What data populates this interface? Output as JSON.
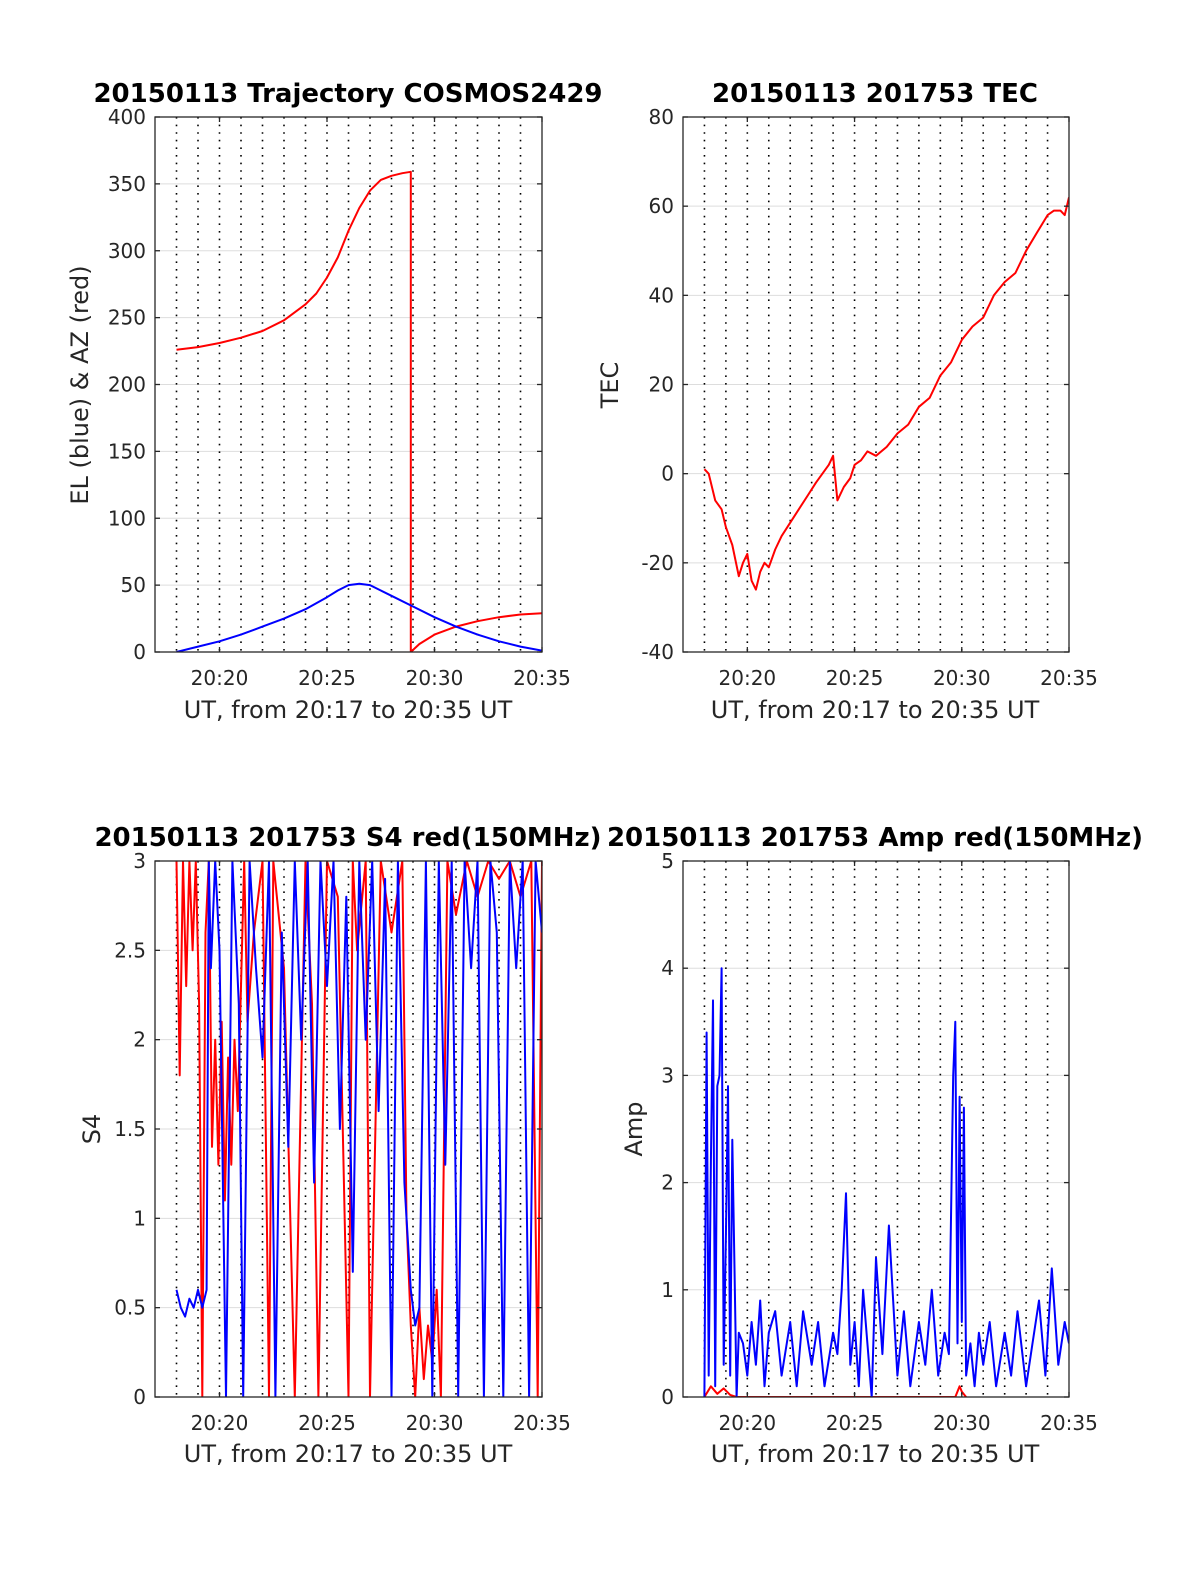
{
  "chart_data": [
    {
      "id": "trajectory",
      "type": "line",
      "title": "20150113 Trajectory COSMOS2429",
      "xlabel": "UT, from 20:17 to 20:35 UT",
      "ylabel": "EL (blue) & AZ (red)",
      "xlim": [
        17,
        35
      ],
      "ylim": [
        0,
        400
      ],
      "xticks": [
        20,
        25,
        30,
        35
      ],
      "xtick_labels": [
        "20:20",
        "20:25",
        "20:30",
        "20:35"
      ],
      "yticks": [
        0,
        50,
        100,
        150,
        200,
        250,
        300,
        350,
        400
      ],
      "ytick_labels": [
        "0",
        "50",
        "100",
        "150",
        "200",
        "250",
        "300",
        "350",
        "400"
      ],
      "grid_minutes": [
        18,
        19,
        20,
        21,
        22,
        23,
        24,
        25,
        26,
        27,
        28,
        29,
        30,
        31,
        32,
        33,
        34
      ],
      "series": [
        {
          "color": "#ff0000",
          "x": [
            18.0,
            19.0,
            20.0,
            21.0,
            22.0,
            23.0,
            24.0,
            24.5,
            25.0,
            25.5,
            26.0,
            26.5,
            27.0,
            27.5,
            28.0,
            28.5,
            28.9,
            28.9,
            29.3,
            30.0,
            31.0,
            32.0,
            33.0,
            34.0,
            35.0
          ],
          "y": [
            226,
            228,
            231,
            235,
            240,
            248,
            260,
            268,
            280,
            295,
            315,
            332,
            345,
            353,
            356,
            358,
            359,
            0,
            6,
            13,
            19,
            23,
            26,
            28,
            29
          ]
        },
        {
          "color": "#0000ff",
          "x": [
            18.0,
            19.0,
            20.0,
            21.0,
            22.0,
            23.0,
            24.0,
            25.0,
            25.5,
            26.0,
            26.5,
            27.0,
            27.5,
            28.0,
            29.0,
            30.0,
            31.0,
            32.0,
            33.0,
            34.0,
            35.0
          ],
          "y": [
            0,
            4,
            8,
            13,
            19,
            25,
            32,
            41,
            46,
            50,
            51,
            50,
            46,
            42,
            34,
            26,
            19,
            13,
            8,
            4,
            1
          ]
        }
      ]
    },
    {
      "id": "tec",
      "type": "line",
      "title": "20150113 201753 TEC",
      "xlabel": "UT, from 20:17 to 20:35 UT",
      "ylabel": "TEC",
      "xlim": [
        17,
        35
      ],
      "ylim": [
        -40,
        80
      ],
      "xticks": [
        20,
        25,
        30,
        35
      ],
      "xtick_labels": [
        "20:20",
        "20:25",
        "20:30",
        "20:35"
      ],
      "yticks": [
        -40,
        -20,
        0,
        20,
        40,
        60,
        80
      ],
      "ytick_labels": [
        "-40",
        "-20",
        "0",
        "20",
        "40",
        "60",
        "80"
      ],
      "grid_minutes": [
        18,
        19,
        20,
        21,
        22,
        23,
        24,
        25,
        26,
        27,
        28,
        29,
        30,
        31,
        32,
        33,
        34
      ],
      "series": [
        {
          "color": "#ff0000",
          "x": [
            18.0,
            18.2,
            18.5,
            18.8,
            19.0,
            19.3,
            19.6,
            19.8,
            20.0,
            20.2,
            20.4,
            20.6,
            20.8,
            21.0,
            21.3,
            21.6,
            22.0,
            22.4,
            22.8,
            23.2,
            23.5,
            23.8,
            24.0,
            24.2,
            24.5,
            24.8,
            25.0,
            25.3,
            25.6,
            26.0,
            26.5,
            27.0,
            27.5,
            28.0,
            28.5,
            29.0,
            29.5,
            30.0,
            30.5,
            31.0,
            31.5,
            32.0,
            32.5,
            33.0,
            33.5,
            34.0,
            34.3,
            34.6,
            34.8,
            35.0
          ],
          "y": [
            1,
            0,
            -6,
            -8,
            -12,
            -16,
            -23,
            -20,
            -18,
            -24,
            -26,
            -22,
            -20,
            -21,
            -17,
            -14,
            -11,
            -8,
            -5,
            -2,
            0,
            2,
            4,
            -6,
            -3,
            -1,
            2,
            3,
            5,
            4,
            6,
            9,
            11,
            15,
            17,
            22,
            25,
            30,
            33,
            35,
            40,
            43,
            45,
            50,
            54,
            58,
            59,
            59,
            58,
            62
          ]
        }
      ]
    },
    {
      "id": "s4",
      "type": "line",
      "title": "20150113 201753 S4 red(150MHz)",
      "xlabel": "UT, from 20:17 to 20:35 UT",
      "ylabel": "S4",
      "xlim": [
        17,
        35
      ],
      "ylim": [
        0,
        3
      ],
      "xticks": [
        20,
        25,
        30,
        35
      ],
      "xtick_labels": [
        "20:20",
        "20:25",
        "20:30",
        "20:35"
      ],
      "yticks": [
        0,
        0.5,
        1,
        1.5,
        2,
        2.5,
        3
      ],
      "ytick_labels": [
        "0",
        "0.5",
        "1",
        "1.5",
        "2",
        "2.5",
        "3"
      ],
      "grid_minutes": [
        18,
        19,
        20,
        21,
        22,
        23,
        24,
        25,
        26,
        27,
        28,
        29,
        30,
        31,
        32,
        33,
        34
      ],
      "series": [
        {
          "color": "#ff0000",
          "x": [
            18.0,
            18.15,
            18.3,
            18.45,
            18.6,
            18.75,
            18.9,
            19.05,
            19.2,
            19.35,
            19.5,
            19.65,
            19.8,
            19.95,
            20.1,
            20.25,
            20.4,
            20.55,
            20.7,
            20.85,
            21.0,
            21.15,
            21.3,
            21.6,
            22.0,
            22.3,
            22.5,
            23.0,
            23.5,
            24.0,
            24.3,
            24.6,
            25.0,
            25.5,
            26.0,
            26.2,
            26.4,
            26.8,
            27.0,
            27.5,
            28.0,
            28.5,
            28.7,
            28.9,
            29.1,
            29.3,
            29.5,
            29.7,
            29.9,
            30.1,
            30.3,
            30.6,
            31.0,
            31.5,
            32.0,
            32.5,
            33.0,
            33.5,
            34.0,
            34.5,
            34.8,
            35.0
          ],
          "y": [
            3.0,
            1.8,
            3.0,
            2.3,
            3.0,
            2.5,
            3.0,
            2.2,
            0.0,
            2.6,
            3.0,
            1.4,
            2.0,
            1.3,
            2.1,
            1.1,
            1.9,
            1.3,
            2.0,
            1.6,
            2.3,
            3.0,
            2.1,
            2.6,
            3.0,
            0.0,
            3.0,
            2.4,
            0.0,
            3.0,
            2.2,
            0.0,
            3.0,
            2.8,
            0.0,
            3.0,
            2.5,
            3.0,
            0.0,
            3.0,
            2.6,
            3.0,
            1.0,
            0.4,
            0.0,
            0.5,
            0.1,
            0.4,
            0.2,
            0.6,
            0.0,
            3.0,
            2.7,
            3.0,
            2.8,
            3.0,
            2.9,
            3.0,
            2.8,
            3.0,
            0.0,
            3.0
          ]
        },
        {
          "color": "#0000ff",
          "x": [
            18.0,
            18.2,
            18.4,
            18.6,
            18.8,
            19.0,
            19.2,
            19.4,
            19.5,
            19.6,
            19.8,
            20.0,
            20.3,
            20.6,
            20.9,
            21.1,
            21.4,
            21.7,
            22.0,
            22.3,
            22.6,
            22.9,
            23.2,
            23.5,
            23.8,
            24.1,
            24.4,
            24.7,
            25.0,
            25.3,
            25.6,
            25.9,
            26.2,
            26.5,
            26.8,
            27.1,
            27.4,
            27.7,
            28.0,
            28.3,
            28.6,
            28.9,
            29.1,
            29.3,
            29.6,
            29.9,
            30.2,
            30.5,
            30.8,
            31.1,
            31.4,
            31.7,
            32.0,
            32.3,
            32.6,
            32.9,
            33.2,
            33.5,
            33.8,
            34.1,
            34.4,
            34.7,
            35.0
          ],
          "y": [
            0.6,
            0.5,
            0.45,
            0.55,
            0.5,
            0.6,
            0.5,
            0.6,
            3.0,
            2.4,
            3.0,
            2.5,
            0.0,
            3.0,
            2.2,
            0.0,
            3.0,
            2.4,
            1.9,
            3.0,
            0.0,
            2.6,
            1.4,
            3.0,
            2.0,
            3.0,
            1.2,
            3.0,
            2.3,
            3.0,
            1.5,
            2.8,
            0.7,
            3.0,
            2.0,
            3.0,
            1.6,
            2.9,
            0.0,
            3.0,
            1.2,
            0.6,
            0.4,
            0.5,
            3.0,
            0.0,
            3.0,
            1.3,
            3.0,
            0.0,
            3.0,
            2.4,
            3.0,
            0.0,
            3.0,
            2.6,
            0.0,
            3.0,
            2.4,
            3.0,
            0.0,
            3.0,
            2.6
          ]
        }
      ]
    },
    {
      "id": "amp",
      "type": "line",
      "title": "20150113 201753 Amp red(150MHz)",
      "xlabel": "UT, from 20:17 to 20:35 UT",
      "ylabel": "Amp",
      "xlim": [
        17,
        35
      ],
      "ylim": [
        0,
        5
      ],
      "xticks": [
        20,
        25,
        30,
        35
      ],
      "xtick_labels": [
        "20:20",
        "20:25",
        "20:30",
        "20:35"
      ],
      "yticks": [
        0,
        1,
        2,
        3,
        4,
        5
      ],
      "ytick_labels": [
        "0",
        "1",
        "2",
        "3",
        "4",
        "5"
      ],
      "grid_minutes": [
        18,
        19,
        20,
        21,
        22,
        23,
        24,
        25,
        26,
        27,
        28,
        29,
        30,
        31,
        32,
        33,
        34
      ],
      "series": [
        {
          "color": "#ff0000",
          "x": [
            18.0,
            18.3,
            18.6,
            18.9,
            19.2,
            19.5,
            29.7,
            29.9,
            30.0,
            30.2
          ],
          "y": [
            0.0,
            0.1,
            0.03,
            0.08,
            0.02,
            0.0,
            0.0,
            0.1,
            0.05,
            0.0
          ]
        },
        {
          "color": "#0000ff",
          "x": [
            18.0,
            18.1,
            18.2,
            18.3,
            18.4,
            18.5,
            18.6,
            18.7,
            18.8,
            18.9,
            19.0,
            19.1,
            19.2,
            19.3,
            19.4,
            19.5,
            19.6,
            19.8,
            20.0,
            20.2,
            20.4,
            20.6,
            20.8,
            21.0,
            21.3,
            21.6,
            22.0,
            22.3,
            22.6,
            23.0,
            23.3,
            23.6,
            24.0,
            24.2,
            24.4,
            24.6,
            24.8,
            25.0,
            25.2,
            25.4,
            25.6,
            25.8,
            26.0,
            26.3,
            26.6,
            27.0,
            27.3,
            27.6,
            28.0,
            28.3,
            28.6,
            28.9,
            29.2,
            29.4,
            29.6,
            29.7,
            29.8,
            29.9,
            30.0,
            30.1,
            30.2,
            30.4,
            30.6,
            30.8,
            31.0,
            31.3,
            31.6,
            32.0,
            32.3,
            32.6,
            33.0,
            33.3,
            33.6,
            33.9,
            34.2,
            34.5,
            34.8,
            35.0
          ],
          "y": [
            0.0,
            3.4,
            0.2,
            2.2,
            3.7,
            0.1,
            2.9,
            3.0,
            4.0,
            0.3,
            1.5,
            2.9,
            0.2,
            2.4,
            1.2,
            0.0,
            0.6,
            0.5,
            0.2,
            0.7,
            0.3,
            0.9,
            0.1,
            0.6,
            0.8,
            0.2,
            0.7,
            0.1,
            0.8,
            0.3,
            0.7,
            0.1,
            0.6,
            0.4,
            1.0,
            1.9,
            0.3,
            0.7,
            0.1,
            1.0,
            0.5,
            0.0,
            1.3,
            0.4,
            1.6,
            0.2,
            0.8,
            0.1,
            0.7,
            0.3,
            1.0,
            0.2,
            0.6,
            0.4,
            3.0,
            3.5,
            0.5,
            2.8,
            0.7,
            2.7,
            0.2,
            0.5,
            0.1,
            0.6,
            0.3,
            0.7,
            0.1,
            0.6,
            0.2,
            0.8,
            0.1,
            0.5,
            0.9,
            0.2,
            1.2,
            0.3,
            0.7,
            0.5
          ]
        }
      ]
    }
  ]
}
